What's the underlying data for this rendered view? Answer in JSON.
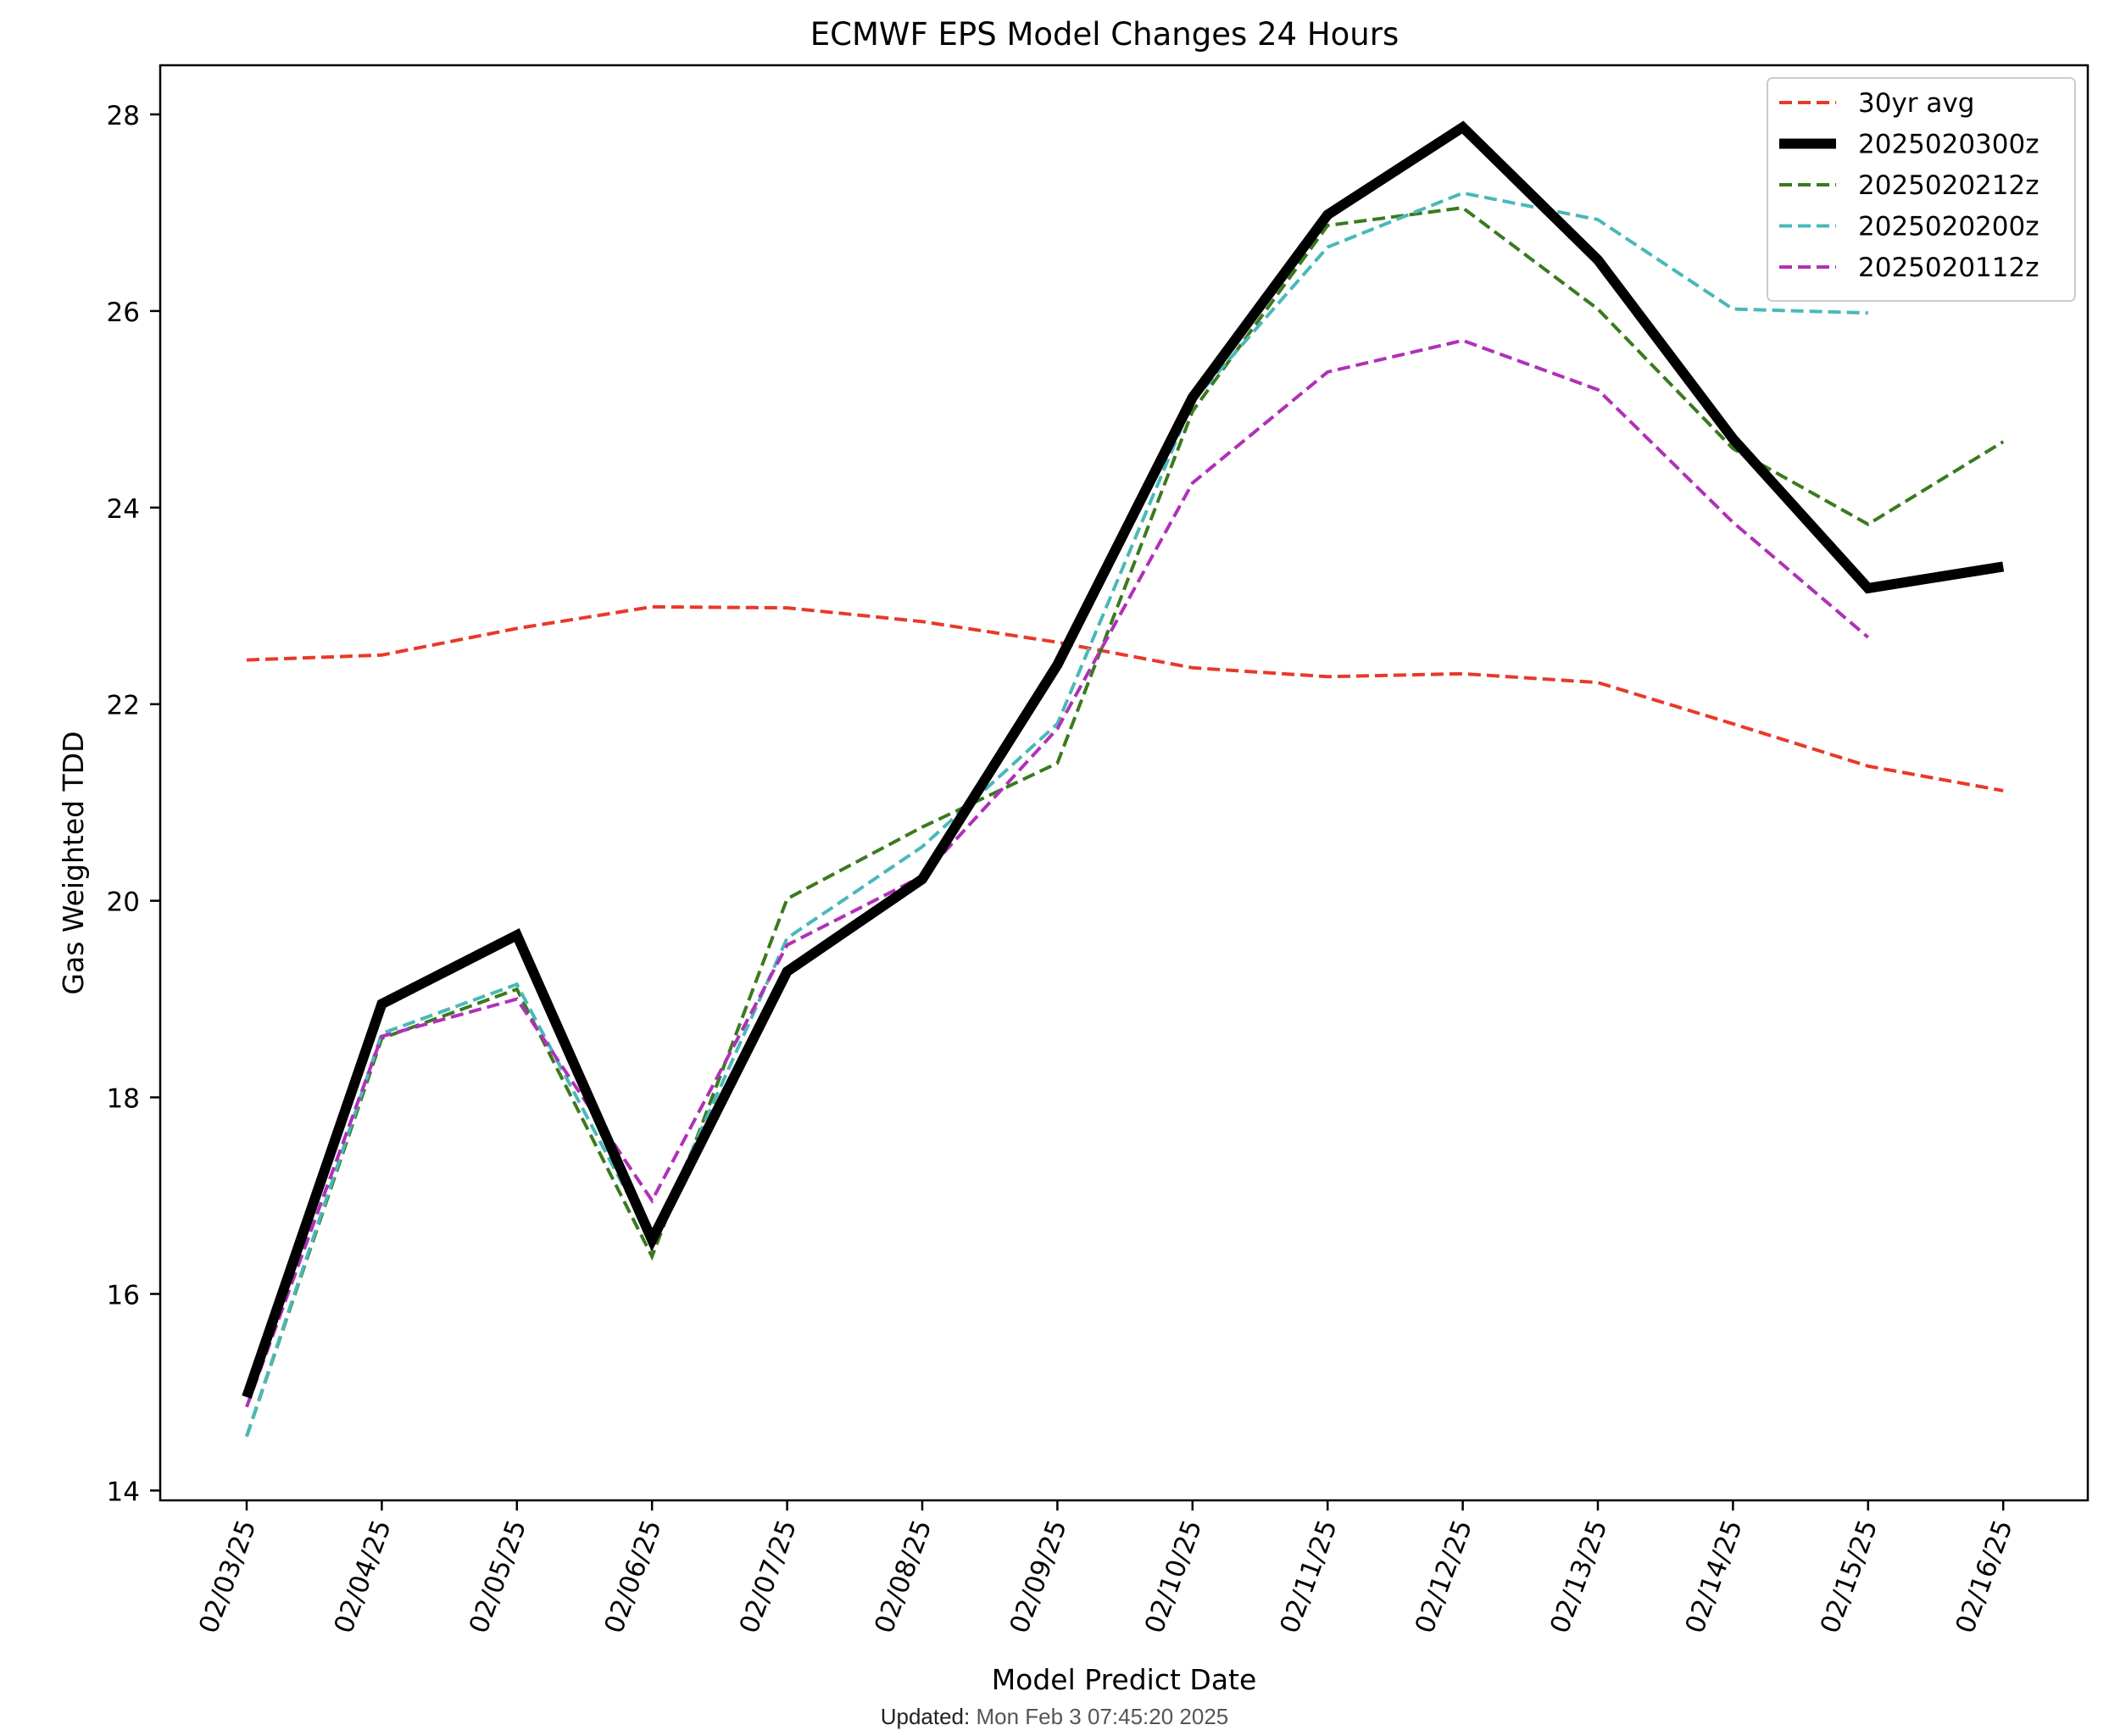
{
  "chart_data": {
    "type": "line",
    "title": "ECMWF EPS Model Changes 24 Hours",
    "xlabel": "Model Predict Date",
    "ylabel": "Gas Weighted TDD",
    "categories": [
      "02/03/25",
      "02/04/25",
      "02/05/25",
      "02/06/25",
      "02/07/25",
      "02/08/25",
      "02/09/25",
      "02/10/25",
      "02/11/25",
      "02/12/25",
      "02/13/25",
      "02/14/25",
      "02/15/25",
      "02/16/25"
    ],
    "ylim": [
      13.9,
      28.5
    ],
    "yticks": [
      14,
      16,
      18,
      20,
      22,
      24,
      26,
      28
    ],
    "grid": false,
    "legend_position": "top-right",
    "series": [
      {
        "name": "30yr avg",
        "color": "#e8392a",
        "style": "dashed",
        "width": "thin",
        "values": [
          22.45,
          22.5,
          22.77,
          22.99,
          22.98,
          22.84,
          22.63,
          22.37,
          22.28,
          22.31,
          22.22,
          21.8,
          21.37,
          21.12
        ]
      },
      {
        "name": "2025020300z",
        "color": "#000000",
        "style": "solid",
        "width": "thick",
        "values": [
          14.95,
          18.95,
          19.65,
          16.55,
          19.28,
          20.22,
          22.4,
          25.12,
          26.98,
          27.87,
          26.52,
          24.7,
          23.18,
          23.4
        ]
      },
      {
        "name": "2025020212z",
        "color": "#3a7a1e",
        "style": "dashed",
        "width": "thin",
        "values": [
          14.55,
          18.6,
          19.1,
          16.38,
          20.02,
          20.75,
          21.4,
          24.98,
          26.87,
          27.05,
          26.02,
          24.6,
          23.83,
          24.67
        ]
      },
      {
        "name": "2025020200z",
        "color": "#4ab8b8",
        "style": "dashed",
        "width": "thin",
        "values": [
          14.55,
          18.65,
          19.15,
          16.55,
          19.62,
          20.55,
          21.8,
          25.08,
          26.65,
          27.2,
          26.93,
          26.02,
          25.98,
          null
        ]
      },
      {
        "name": "2025020112z",
        "color": "#b030b8",
        "style": "dashed",
        "width": "thin",
        "values": [
          14.85,
          18.62,
          19.0,
          16.95,
          19.55,
          20.25,
          21.75,
          24.25,
          25.38,
          25.7,
          25.2,
          23.85,
          22.68,
          null
        ]
      }
    ]
  },
  "footer": {
    "updated_label": "Updated:",
    "updated_value": "Mon Feb 3 07:45:20 2025"
  }
}
